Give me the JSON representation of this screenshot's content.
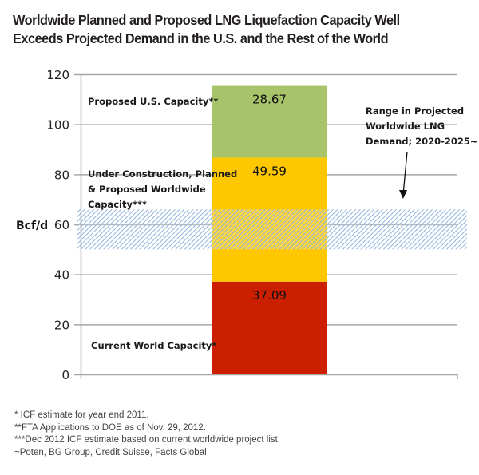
{
  "chart_data": {
    "type": "bar",
    "stacked": true,
    "title": "Worldwide Planned and Proposed LNG Liquefaction Capacity Well Exceeds Projected Demand in the U.S. and the Rest of the World",
    "title_lines": [
      "Worldwide Planned and Proposed LNG Liquefaction Capacity Well",
      "Exceeds Projected Demand in the U.S. and the Rest of the World"
    ],
    "xlabel": "",
    "ylabel": "Bcf/d",
    "ylim": [
      0,
      120
    ],
    "yticks": [
      0,
      20,
      40,
      60,
      80,
      100,
      120
    ],
    "grid": true,
    "categories": [
      ""
    ],
    "series": [
      {
        "name": "Current World Capacity*",
        "values": [
          37.09
        ],
        "color": "#cc1f00",
        "label": "37.09"
      },
      {
        "name": "Under Construction, Planned & Proposed Worldwide Capacity***",
        "values": [
          49.59
        ],
        "color": "#ffc700",
        "label": "49.59"
      },
      {
        "name": "Proposed U.S. Capacity**",
        "values": [
          28.67
        ],
        "color": "#a8c46a",
        "label": "28.67"
      }
    ],
    "series_annotations": [
      {
        "lines": [
          "Current World Capacity*"
        ],
        "series": 0
      },
      {
        "lines": [
          "Under Construction, Planned",
          "& Proposed Worldwide",
          "Capacity***"
        ],
        "series": 1
      },
      {
        "lines": [
          "Proposed U.S. Capacity**"
        ],
        "series": 2
      }
    ],
    "band": {
      "name": "Range in Projected Worldwide LNG Demand; 2020-2025~",
      "range": [
        50,
        66
      ],
      "color": "#8fb4dc",
      "label_lines": [
        "Range in Projected",
        "Worldwide LNG",
        "Demand; 2020-2025~"
      ]
    }
  },
  "footnotes": [
    "* ICF estimate for year end 2011.",
    "**FTA Applications to DOE as of Nov. 29, 2012.",
    "***Dec 2012 ICF estimate based on current worldwide project list.",
    "~Poten, BG Group, Credit Suisse, Facts Global"
  ]
}
